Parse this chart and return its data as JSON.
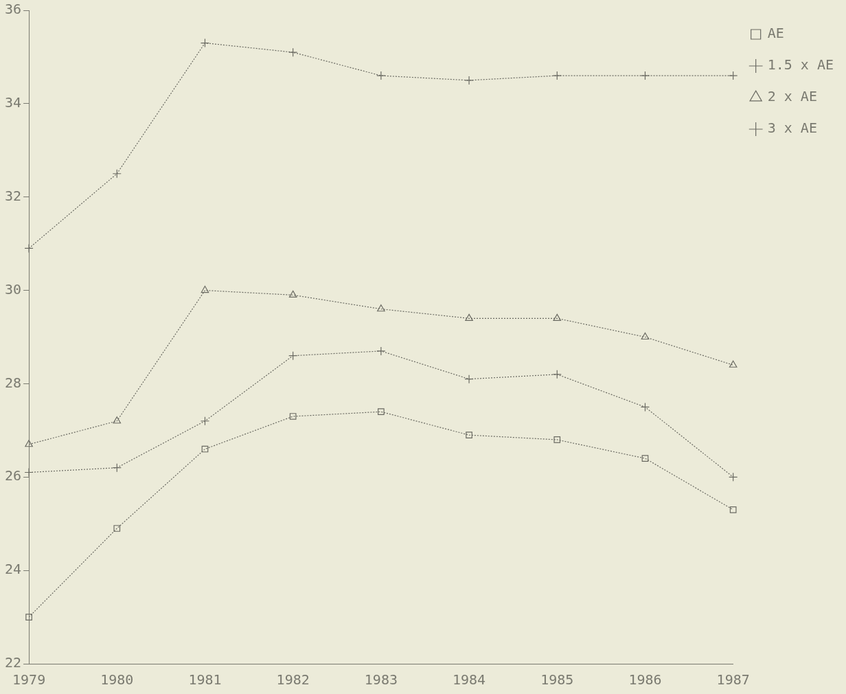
{
  "chart_data": {
    "type": "line",
    "categories": [
      "1979",
      "1980",
      "1981",
      "1982",
      "1983",
      "1984",
      "1985",
      "1986",
      "1987"
    ],
    "series": [
      {
        "name": "AE",
        "color": "#6a6a62",
        "marker": "square",
        "values": [
          23.0,
          24.9,
          26.6,
          27.3,
          27.4,
          26.9,
          26.8,
          26.4,
          25.3
        ]
      },
      {
        "name": "1.5 x AE",
        "color": "#6a6a62",
        "marker": "cross",
        "values": [
          26.1,
          26.2,
          27.2,
          28.6,
          28.7,
          28.1,
          28.2,
          27.5,
          26.0
        ]
      },
      {
        "name": "2 x AE",
        "color": "#6a6a62",
        "marker": "triangle",
        "values": [
          26.7,
          27.2,
          30.0,
          29.9,
          29.6,
          29.4,
          29.4,
          29.0,
          28.4
        ]
      },
      {
        "name": "3 x AE",
        "color": "#6a6a62",
        "marker": "cross",
        "values": [
          30.9,
          32.5,
          35.3,
          35.1,
          34.6,
          34.5,
          34.6,
          34.6,
          34.6
        ]
      }
    ],
    "ylim": [
      22,
      36
    ],
    "yticks": [
      22,
      24,
      26,
      28,
      30,
      32,
      34,
      36
    ],
    "grid": false,
    "legend": "top right",
    "line_style": "dotted"
  }
}
